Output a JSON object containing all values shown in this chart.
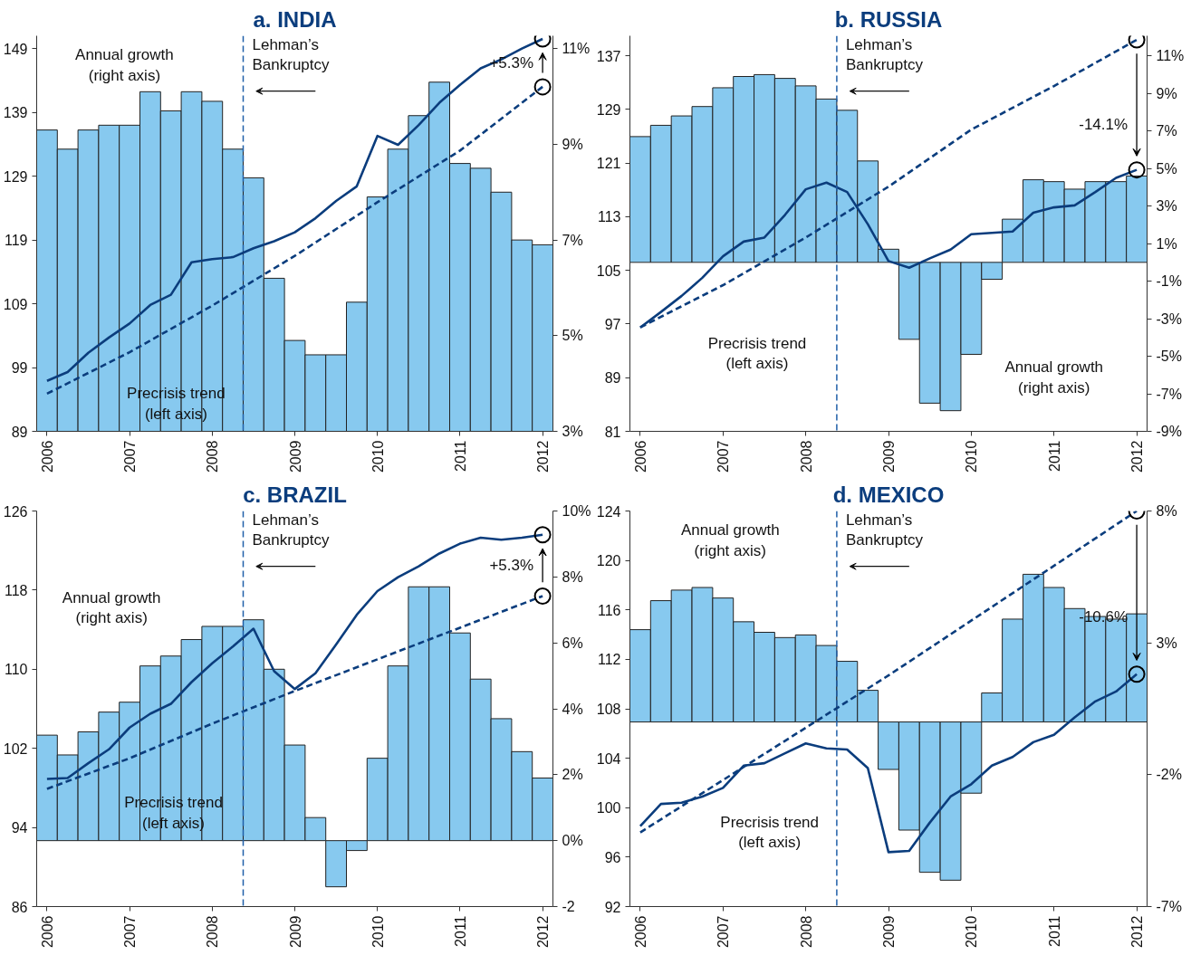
{
  "chart_data": [
    {
      "type": "bar",
      "title": "a. INDIA",
      "x": [
        2006,
        2006.25,
        2006.5,
        2006.75,
        2007,
        2007.25,
        2007.5,
        2007.75,
        2008,
        2008.25,
        2008.5,
        2008.75,
        2009,
        2009.25,
        2009.5,
        2009.75,
        2010,
        2010.25,
        2010.5,
        2010.75,
        2011,
        2011.25,
        2011.5,
        2011.75,
        2012
      ],
      "xlim": [
        2005.875,
        2012.125
      ],
      "xticks": [
        2006,
        2007,
        2008,
        2009,
        2010,
        2011,
        2012
      ],
      "ylim": [
        89,
        151
      ],
      "yticks": [
        89,
        99,
        109,
        119,
        129,
        139,
        149
      ],
      "y2lim": [
        3,
        11.27
      ],
      "y2ticks": [
        {
          "value": 3,
          "label": "3%"
        },
        {
          "value": 5,
          "label": "5%"
        },
        {
          "value": 7,
          "label": "7%"
        },
        {
          "value": 9,
          "label": "9%"
        },
        {
          "value": 11,
          "label": "11%"
        }
      ],
      "series": [
        {
          "axis": "y2",
          "color": "#87c9ef",
          "values": [
            9.3,
            8.9,
            9.3,
            9.4,
            9.4,
            10.1,
            9.7,
            10.1,
            9.9,
            8.9,
            8.3,
            6.2,
            4.9,
            4.6,
            4.6,
            5.7,
            7.9,
            8.9,
            9.6,
            10.3,
            8.6,
            8.5,
            8.0,
            7.0,
            6.9
          ]
        },
        {
          "type": "line",
          "color": "#0b3d7d",
          "values": [
            96.9,
            98.3,
            101.3,
            103.7,
            105.9,
            108.8,
            110.4,
            115.5,
            116.0,
            116.3,
            117.7,
            118.8,
            120.2,
            122.4,
            125.1,
            127.4,
            135.3,
            133.9,
            137.0,
            140.5,
            143.3,
            145.9,
            147.3,
            149.0,
            150.5
          ]
        },
        {
          "type": "line",
          "color": "#0b3d7d",
          "line_style": "dashed",
          "x": [
            2006,
            2007,
            2008,
            2009,
            2010,
            2011,
            2012
          ],
          "values": [
            94.9,
            101.4,
            108.7,
            116.5,
            124.9,
            133.0,
            143.0
          ]
        },
        {
          "type": "scatter",
          "marker": "circle",
          "color": "#000000",
          "x": [
            2012,
            2012
          ],
          "values": [
            143.0,
            150.5
          ]
        }
      ],
      "ref_lines": [
        {
          "axis": "x",
          "value": 2008.375,
          "label": "Lehman’s\nBankruptcy",
          "color": "#1f5fa8",
          "line_style": "dashed"
        }
      ],
      "annotations": [
        "Annual growth\n(right axis)",
        "Precrisis trend\n(left axis)",
        "+5.3%"
      ]
    },
    {
      "type": "bar",
      "title": "b. RUSSIA",
      "x": [
        2006,
        2006.25,
        2006.5,
        2006.75,
        2007,
        2007.25,
        2007.5,
        2007.75,
        2008,
        2008.25,
        2008.5,
        2008.75,
        2009,
        2009.25,
        2009.5,
        2009.75,
        2010,
        2010.25,
        2010.5,
        2010.75,
        2011,
        2011.25,
        2011.5,
        2011.75,
        2012
      ],
      "xlim": [
        2005.875,
        2012.125
      ],
      "xticks": [
        2006,
        2007,
        2008,
        2009,
        2010,
        2011,
        2012
      ],
      "ylim": [
        81,
        140
      ],
      "yticks": [
        81,
        89,
        97,
        105,
        113,
        121,
        129,
        137
      ],
      "y2lim": [
        -9,
        12.07
      ],
      "y2ticks": [
        {
          "value": -9,
          "label": "-9%"
        },
        {
          "value": -7,
          "label": "-7%"
        },
        {
          "value": -5,
          "label": "-5%"
        },
        {
          "value": -3,
          "label": "-3%"
        },
        {
          "value": -1,
          "label": "-1%"
        },
        {
          "value": 1,
          "label": "1%"
        },
        {
          "value": 3,
          "label": "3%"
        },
        {
          "value": 5,
          "label": "5%"
        },
        {
          "value": 7,
          "label": "7%"
        },
        {
          "value": 9,
          "label": "9%"
        },
        {
          "value": 11,
          "label": "11%"
        }
      ],
      "series": [
        {
          "axis": "y2",
          "color": "#87c9ef",
          "values": [
            6.7,
            7.3,
            7.8,
            8.3,
            9.3,
            9.9,
            10.0,
            9.8,
            9.4,
            8.7,
            8.1,
            5.4,
            0.7,
            -4.1,
            -7.5,
            -7.9,
            -4.9,
            -0.9,
            2.3,
            4.4,
            4.3,
            3.9,
            4.3,
            4.3,
            4.6
          ]
        },
        {
          "type": "line",
          "color": "#0b3d7d",
          "values": [
            96.5,
            98.8,
            101.2,
            103.9,
            107.1,
            109.3,
            109.9,
            113.3,
            117.1,
            118.1,
            116.7,
            111.9,
            106.4,
            105.4,
            106.8,
            108.1,
            110.4,
            110.6,
            110.8,
            113.6,
            114.4,
            114.7,
            116.7,
            118.8,
            120.0
          ]
        },
        {
          "type": "line",
          "color": "#0b3d7d",
          "line_style": "dashed",
          "x": [
            2006,
            2007,
            2008,
            2009,
            2010,
            2011,
            2012
          ],
          "values": [
            96.5,
            102.8,
            109.9,
            117.5,
            126.0,
            132.5,
            139.4
          ]
        },
        {
          "type": "scatter",
          "marker": "circle",
          "color": "#000000",
          "x": [
            2012,
            2012
          ],
          "values": [
            139.4,
            120.0
          ]
        }
      ],
      "ref_lines": [
        {
          "axis": "x",
          "value": 2008.375,
          "label": "Lehman’s\nBankruptcy",
          "color": "#1f5fa8",
          "line_style": "dashed"
        }
      ],
      "annotations": [
        "Precrisis trend\n(left axis)",
        "Annual growth\n(right axis)",
        "-14.1%"
      ]
    },
    {
      "type": "bar",
      "title": "c. BRAZIL",
      "x": [
        2006,
        2006.25,
        2006.5,
        2006.75,
        2007,
        2007.25,
        2007.5,
        2007.75,
        2008,
        2008.25,
        2008.5,
        2008.75,
        2009,
        2009.25,
        2009.5,
        2009.75,
        2010,
        2010.25,
        2010.5,
        2010.75,
        2011,
        2011.25,
        2011.5,
        2011.75,
        2012
      ],
      "xlim": [
        2005.875,
        2012.125
      ],
      "xticks": [
        2006,
        2007,
        2008,
        2009,
        2010,
        2011,
        2012
      ],
      "ylim": [
        86,
        126
      ],
      "yticks": [
        86,
        94,
        102,
        110,
        118,
        126
      ],
      "y2lim": [
        -2,
        10
      ],
      "y2ticks": [
        {
          "value": -2,
          "label": "-2"
        },
        {
          "value": 0,
          "label": "0%"
        },
        {
          "value": 2,
          "label": "2%"
        },
        {
          "value": 4,
          "label": "4%"
        },
        {
          "value": 6,
          "label": "6%"
        },
        {
          "value": 8,
          "label": "8%"
        },
        {
          "value": 10,
          "label": "10%"
        }
      ],
      "series": [
        {
          "axis": "y2",
          "color": "#87c9ef",
          "values": [
            3.2,
            2.6,
            3.3,
            3.9,
            4.2,
            5.3,
            5.6,
            6.1,
            6.5,
            6.5,
            6.7,
            5.2,
            2.9,
            0.7,
            -1.4,
            -0.3,
            2.5,
            5.3,
            7.7,
            7.7,
            6.3,
            4.9,
            3.7,
            2.7,
            1.9
          ]
        },
        {
          "type": "line",
          "color": "#0b3d7d",
          "values": [
            98.9,
            99.0,
            100.5,
            101.9,
            104.1,
            105.5,
            106.5,
            108.7,
            110.6,
            112.3,
            114.1,
            109.8,
            108.0,
            109.6,
            112.5,
            115.5,
            117.9,
            119.3,
            120.4,
            121.7,
            122.7,
            123.3,
            123.1,
            123.3,
            123.6
          ]
        },
        {
          "type": "line",
          "color": "#0b3d7d",
          "line_style": "dashed",
          "x": [
            2006,
            2007,
            2008,
            2009,
            2010,
            2011,
            2012
          ],
          "values": [
            97.9,
            101.0,
            104.5,
            107.8,
            111.0,
            114.2,
            117.4
          ]
        },
        {
          "type": "scatter",
          "marker": "circle",
          "color": "#000000",
          "x": [
            2012,
            2012
          ],
          "values": [
            117.4,
            123.6
          ]
        }
      ],
      "ref_lines": [
        {
          "axis": "x",
          "value": 2008.375,
          "label": "Lehman’s\nBankruptcy",
          "color": "#1f5fa8",
          "line_style": "dashed"
        }
      ],
      "annotations": [
        "Annual growth\n(right axis)",
        "Precrisis trend\n(left axis)",
        "+5.3%"
      ]
    },
    {
      "type": "bar",
      "title": "d. MEXICO",
      "x": [
        2006,
        2006.25,
        2006.5,
        2006.75,
        2007,
        2007.25,
        2007.5,
        2007.75,
        2008,
        2008.25,
        2008.5,
        2008.75,
        2009,
        2009.25,
        2009.5,
        2009.75,
        2010,
        2010.25,
        2010.5,
        2010.75,
        2011,
        2011.25,
        2011.5,
        2011.75,
        2012
      ],
      "xlim": [
        2005.875,
        2012.125
      ],
      "xticks": [
        2006,
        2007,
        2008,
        2009,
        2010,
        2011,
        2012
      ],
      "ylim": [
        92,
        124
      ],
      "yticks": [
        92,
        96,
        100,
        104,
        108,
        112,
        116,
        120,
        124
      ],
      "y2lim": [
        -7,
        8
      ],
      "y2ticks": [
        {
          "value": -7,
          "label": "-7%"
        },
        {
          "value": -2,
          "label": "-2%"
        },
        {
          "value": 3,
          "label": "3%"
        },
        {
          "value": 8,
          "label": "8%"
        }
      ],
      "series": [
        {
          "axis": "y2",
          "color": "#87c9ef",
          "values": [
            3.5,
            4.6,
            5.0,
            5.1,
            4.7,
            3.8,
            3.4,
            3.2,
            3.3,
            2.9,
            2.3,
            1.2,
            -1.8,
            -4.1,
            -5.7,
            -6.0,
            -2.7,
            1.1,
            3.9,
            5.6,
            5.1,
            4.3,
            4.0,
            3.9,
            4.1
          ]
        },
        {
          "type": "line",
          "color": "#0b3d7d",
          "values": [
            98.5,
            100.3,
            100.4,
            100.9,
            101.6,
            103.4,
            103.6,
            104.4,
            105.2,
            104.8,
            104.7,
            103.2,
            96.4,
            96.5,
            98.8,
            100.9,
            101.9,
            103.4,
            104.1,
            105.3,
            105.9,
            107.3,
            108.6,
            109.4,
            110.8
          ]
        },
        {
          "type": "line",
          "color": "#0b3d7d",
          "line_style": "dashed",
          "x": [
            2006,
            2009,
            2012
          ],
          "values": [
            98.0,
            110.7,
            124.0
          ]
        },
        {
          "type": "scatter",
          "marker": "circle",
          "color": "#000000",
          "x": [
            2012,
            2012
          ],
          "values": [
            124.0,
            110.8
          ]
        }
      ],
      "ref_lines": [
        {
          "axis": "x",
          "value": 2008.375,
          "label": "Lehman’s\nBankruptcy",
          "color": "#1f5fa8",
          "line_style": "dashed"
        }
      ],
      "annotations": [
        "Annual growth\n(right axis)",
        "Precrisis trend\n(left axis)",
        "-10.6%"
      ]
    }
  ]
}
